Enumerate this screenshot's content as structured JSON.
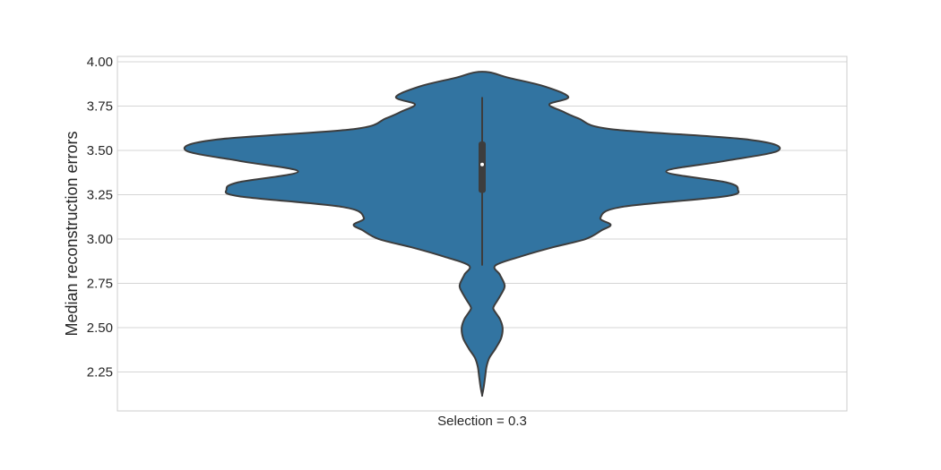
{
  "chart_data": {
    "type": "violin",
    "categories": [
      "Selection = 0.3"
    ],
    "xlabel": "",
    "ylabel": "Median reconstruction errors",
    "ylim": [
      2.03,
      4.03
    ],
    "yticks": [
      "2.25",
      "2.50",
      "2.75",
      "3.00",
      "3.25",
      "3.50",
      "3.75",
      "4.00"
    ],
    "grid": true,
    "colors": {
      "fill": "#3274a1",
      "edge": "#3d3d3d",
      "grid": "#d5d5d5",
      "median": "#ffffff"
    },
    "distribution": {
      "y": [
        2.12,
        2.16,
        2.22,
        2.28,
        2.33,
        2.38,
        2.44,
        2.5,
        2.55,
        2.6,
        2.62,
        2.66,
        2.72,
        2.75,
        2.8,
        2.85,
        2.9,
        2.95,
        3.0,
        3.05,
        3.08,
        3.12,
        3.18,
        3.24,
        3.28,
        3.32,
        3.38,
        3.44,
        3.5,
        3.56,
        3.62,
        3.68,
        3.72,
        3.76,
        3.8,
        3.86,
        3.91,
        3.94
      ],
      "width": [
        0.0,
        0.01,
        0.02,
        0.03,
        0.05,
        0.09,
        0.13,
        0.14,
        0.12,
        0.08,
        0.08,
        0.11,
        0.15,
        0.15,
        0.12,
        0.09,
        0.26,
        0.47,
        0.71,
        0.82,
        0.88,
        0.81,
        0.95,
        1.66,
        1.75,
        1.67,
        1.26,
        1.66,
        2.03,
        1.83,
        0.88,
        0.66,
        0.55,
        0.46,
        0.59,
        0.43,
        0.18,
        0.05
      ]
    },
    "box": {
      "q1": 3.26,
      "median": 3.42,
      "q3": 3.55,
      "whisker_low": 2.85,
      "whisker_high": 3.8
    }
  }
}
